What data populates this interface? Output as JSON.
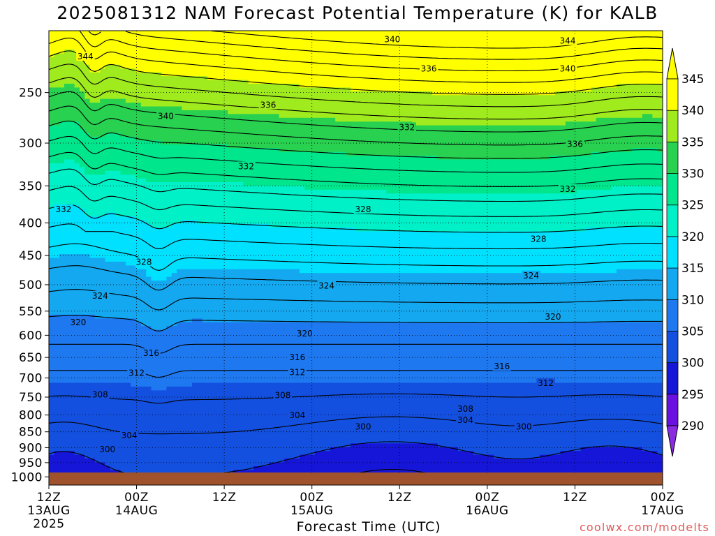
{
  "chart_data": {
    "type": "heatmap",
    "title": "2025081312 NAM Forecast Potential Temperature (K) for KALB",
    "xlabel": "Forecast Time (UTC)",
    "ylabel": "",
    "credit": "coolwx.com/modelts",
    "x_ticks": [
      {
        "label": "12Z",
        "sub1": "13AUG",
        "sub2": "2025",
        "hour": 0
      },
      {
        "label": "00Z",
        "sub1": "14AUG",
        "sub2": "",
        "hour": 12
      },
      {
        "label": "12Z",
        "sub1": "",
        "sub2": "",
        "hour": 24
      },
      {
        "label": "00Z",
        "sub1": "15AUG",
        "sub2": "",
        "hour": 36
      },
      {
        "label": "12Z",
        "sub1": "",
        "sub2": "",
        "hour": 48
      },
      {
        "label": "00Z",
        "sub1": "16AUG",
        "sub2": "",
        "hour": 60
      },
      {
        "label": "12Z",
        "sub1": "",
        "sub2": "",
        "hour": 72
      },
      {
        "label": "00Z",
        "sub1": "17AUG",
        "sub2": "",
        "hour": 84
      }
    ],
    "x_range_hours": [
      0,
      84
    ],
    "y_axis": "pressure (hPa), log scale, inverted",
    "y_range": [
      1030,
      200
    ],
    "y_ticks": [
      250,
      300,
      350,
      400,
      450,
      500,
      550,
      600,
      650,
      700,
      750,
      800,
      850,
      900,
      950,
      1000
    ],
    "grid": true,
    "colorbar": {
      "levels": [
        290,
        295,
        300,
        305,
        310,
        315,
        320,
        325,
        330,
        335,
        340,
        345
      ],
      "colors": [
        "#8a2be2",
        "#6a10e0",
        "#1616d8",
        "#1450e0",
        "#1e78f0",
        "#14a8f0",
        "#00e0ff",
        "#00f0c8",
        "#00e68c",
        "#28d250",
        "#a0eb1e",
        "#ffff00",
        "#ffff00"
      ]
    },
    "contour_labels": [
      {
        "value": "344",
        "hour": 5,
        "p": 220
      },
      {
        "value": "340",
        "hour": 47,
        "p": 207
      },
      {
        "value": "344",
        "hour": 71,
        "p": 208
      },
      {
        "value": "336",
        "hour": 52,
        "p": 230
      },
      {
        "value": "340",
        "hour": 71,
        "p": 230
      },
      {
        "value": "336",
        "hour": 30,
        "p": 262
      },
      {
        "value": "340",
        "hour": 16,
        "p": 273
      },
      {
        "value": "332",
        "hour": 49,
        "p": 284
      },
      {
        "value": "336",
        "hour": 72,
        "p": 302
      },
      {
        "value": "332",
        "hour": 27,
        "p": 327
      },
      {
        "value": "332",
        "hour": 71,
        "p": 355
      },
      {
        "value": "332",
        "hour": 2,
        "p": 382
      },
      {
        "value": "328",
        "hour": 43,
        "p": 382
      },
      {
        "value": "328",
        "hour": 67,
        "p": 425
      },
      {
        "value": "328",
        "hour": 13,
        "p": 462
      },
      {
        "value": "324",
        "hour": 66,
        "p": 485
      },
      {
        "value": "324",
        "hour": 38,
        "p": 503
      },
      {
        "value": "324",
        "hour": 7,
        "p": 522
      },
      {
        "value": "320",
        "hour": 4,
        "p": 574
      },
      {
        "value": "320",
        "hour": 69,
        "p": 563
      },
      {
        "value": "320",
        "hour": 35,
        "p": 598
      },
      {
        "value": "316",
        "hour": 14,
        "p": 642
      },
      {
        "value": "316",
        "hour": 34,
        "p": 651
      },
      {
        "value": "316",
        "hour": 62,
        "p": 673
      },
      {
        "value": "312",
        "hour": 12,
        "p": 689
      },
      {
        "value": "312",
        "hour": 34,
        "p": 688
      },
      {
        "value": "312",
        "hour": 68,
        "p": 715
      },
      {
        "value": "308",
        "hour": 7,
        "p": 745
      },
      {
        "value": "308",
        "hour": 32,
        "p": 747
      },
      {
        "value": "308",
        "hour": 57,
        "p": 785
      },
      {
        "value": "304",
        "hour": 34,
        "p": 803
      },
      {
        "value": "304",
        "hour": 57,
        "p": 817
      },
      {
        "value": "300",
        "hour": 43,
        "p": 837
      },
      {
        "value": "300",
        "hour": 65,
        "p": 837
      },
      {
        "value": "304",
        "hour": 11,
        "p": 864
      },
      {
        "value": "300",
        "hour": 8,
        "p": 908
      }
    ]
  }
}
